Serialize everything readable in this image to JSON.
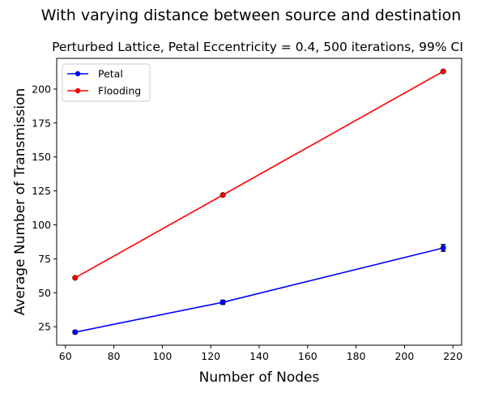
{
  "chart_data": {
    "type": "line",
    "suptitle": "With varying distance between source and destination",
    "title": "Perturbed Lattice, Petal Eccentricity = 0.4, 500 iterations, 99% CI",
    "xlabel": "Number of Nodes",
    "ylabel": "Average Number of Transmission",
    "x": [
      64,
      125,
      216
    ],
    "xlim": [
      56.4,
      223.6
    ],
    "ylim": [
      11.4,
      222.6
    ],
    "xticks": [
      60,
      80,
      100,
      120,
      140,
      160,
      180,
      200,
      220
    ],
    "yticks": [
      25,
      50,
      75,
      100,
      125,
      150,
      175,
      200
    ],
    "grid": false,
    "legend": "upper left",
    "series": [
      {
        "name": "Petal",
        "color": "#0000ff",
        "errcolor": "#00003f",
        "values": [
          21,
          43,
          83
        ],
        "errors": [
          1,
          1.5,
          2.5
        ]
      },
      {
        "name": "Flooding",
        "color": "#ff0000",
        "errcolor": "#3f0000",
        "values": [
          61,
          122,
          213
        ],
        "errors": [
          0.5,
          0.5,
          0.5
        ]
      }
    ]
  }
}
